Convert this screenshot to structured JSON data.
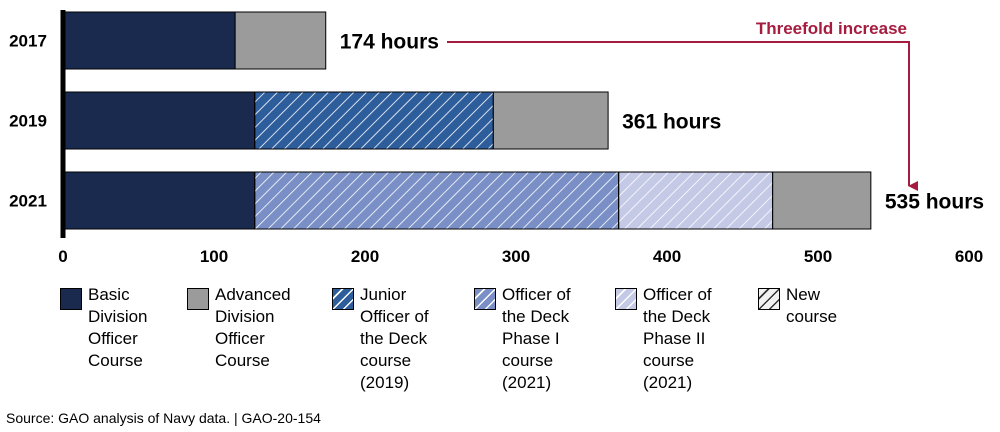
{
  "chart_data": {
    "type": "bar",
    "orientation": "horizontal",
    "stacked": true,
    "xlim": [
      0,
      600
    ],
    "x_ticks": [
      "0",
      "100",
      "200",
      "300",
      "400",
      "500",
      "600"
    ],
    "categories": [
      "2017",
      "2019",
      "2021"
    ],
    "bars": [
      {
        "year": "2017",
        "total_label": "174 hours",
        "segments": [
          {
            "series": "basic",
            "value": 114
          },
          {
            "series": "advanced",
            "value": 60
          }
        ]
      },
      {
        "year": "2019",
        "total_label": "361 hours",
        "segments": [
          {
            "series": "basic",
            "value": 127
          },
          {
            "series": "jood",
            "value": 158
          },
          {
            "series": "advanced",
            "value": 76
          }
        ]
      },
      {
        "year": "2021",
        "total_label": "535 hours",
        "segments": [
          {
            "series": "basic",
            "value": 127
          },
          {
            "series": "ood1",
            "value": 241
          },
          {
            "series": "ood2",
            "value": 102
          },
          {
            "series": "advanced",
            "value": 65
          }
        ]
      }
    ],
    "series": [
      {
        "key": "basic",
        "name": "Basic\nDivision\nOfficer\nCourse",
        "color": "#1a2a4f",
        "new": false
      },
      {
        "key": "advanced",
        "name": "Advanced\nDivision\nOfficer\nCourse",
        "color": "#9b9b9b",
        "new": false
      },
      {
        "key": "jood",
        "name": "Junior\nOfficer of\nthe Deck\ncourse\n(2019)",
        "color": "#2e5d9c",
        "new": true
      },
      {
        "key": "ood1",
        "name": "Officer of\nthe Deck\nPhase I\ncourse\n(2021)",
        "color": "#7a8fc6",
        "new": true
      },
      {
        "key": "ood2",
        "name": "Officer of\nthe Deck\nPhase II\ncourse\n(2021)",
        "color": "#c4c9e6",
        "new": true
      },
      {
        "key": "newcourse",
        "name": "New\ncourse",
        "color": "#f2f2f2",
        "new": true
      }
    ],
    "annotation": "Threefold increase",
    "annotation_color": "#a51c3f"
  },
  "source": "Source: GAO analysis of Navy data.  |  GAO-20-154"
}
